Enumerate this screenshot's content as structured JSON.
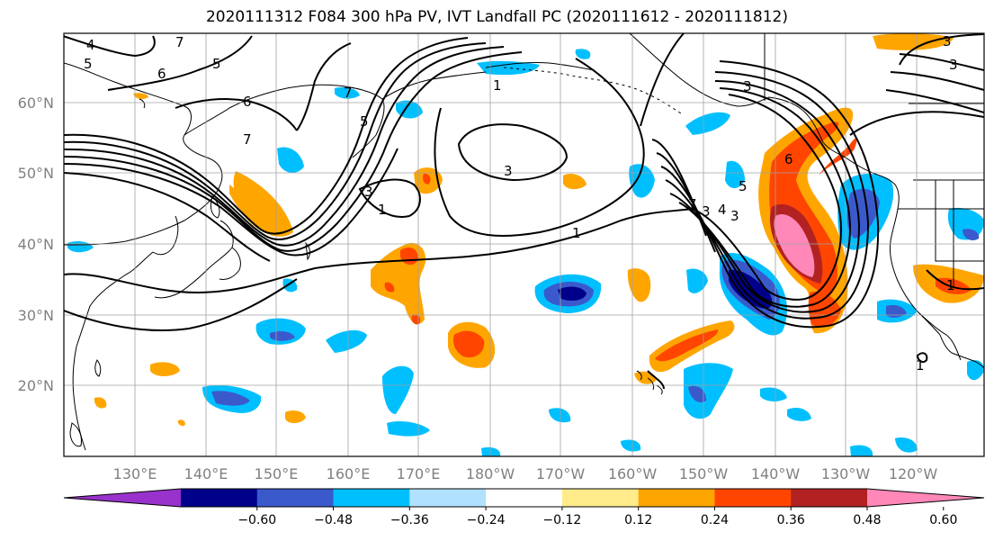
{
  "title": "2020111312 F084 300 hPa PV, IVT Landfall PC (2020111612 - 2020111812)",
  "lon_labels": [
    "130°E",
    "140°E",
    "150°E",
    "160°E",
    "170°E",
    "180°W",
    "170°W",
    "160°W",
    "150°W",
    "140°W",
    "130°W",
    "120°W"
  ],
  "lat_labels": [
    "60°N",
    "50°N",
    "40°N",
    "30°N",
    "20°N"
  ],
  "colorbar": {
    "colors": [
      "#9932cc",
      "#00008b",
      "#3a5acc",
      "#00bfff",
      "#b0e2ff",
      "#ffffff",
      "#ffeb8a",
      "#ffa500",
      "#ff4500",
      "#b22222",
      "#ff88b8"
    ],
    "ticks": [
      "−0.60",
      "−0.48",
      "−0.36",
      "−0.24",
      "−0.12",
      "0.12",
      "0.24",
      "0.36",
      "0.48",
      "0.60"
    ]
  },
  "contour_labels": [
    "5",
    "4",
    "7",
    "6",
    "5",
    "6",
    "5",
    "7",
    "3",
    "1",
    "3",
    "7",
    "1",
    "3",
    "1",
    "3",
    "7",
    "3",
    "6",
    "4",
    "5",
    "3",
    "1",
    "1",
    "3"
  ],
  "colors": {
    "coast": "#000000",
    "grid": "#a0a0a0",
    "contour": "#000000"
  }
}
